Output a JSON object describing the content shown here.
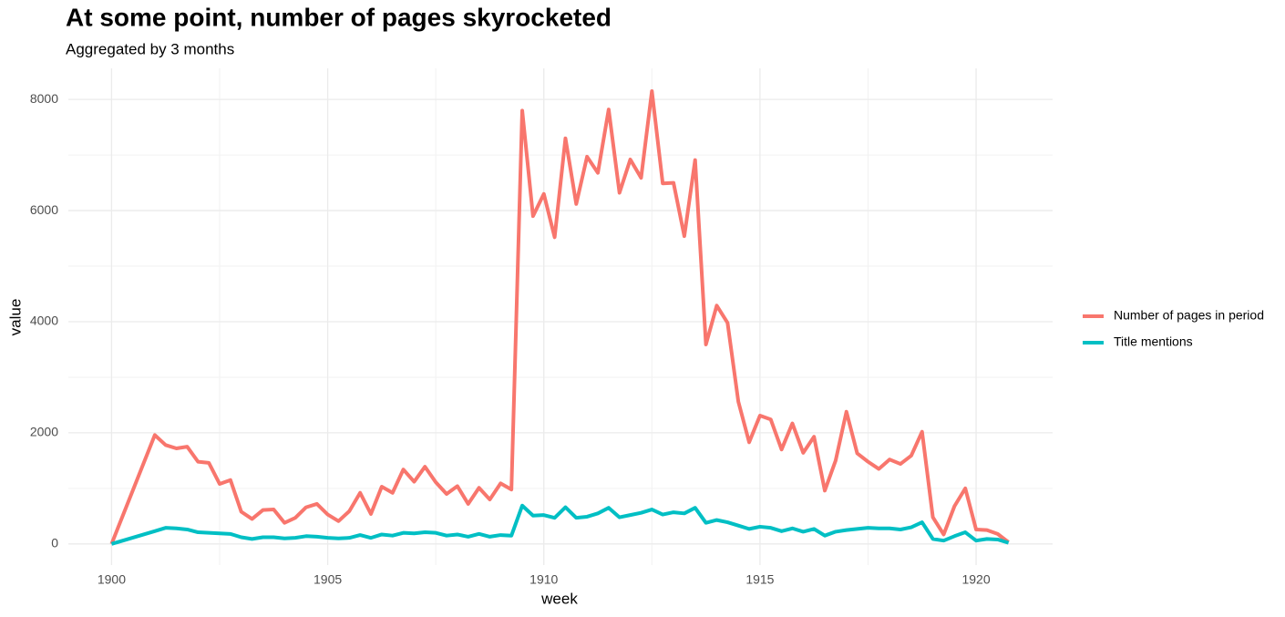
{
  "chart_data": {
    "type": "line",
    "title": "At some point, number of pages skyrocketed",
    "subtitle": "Aggregated by 3 months",
    "x_label": "week",
    "y_label": "value",
    "x": [
      1900,
      1901,
      1901.25,
      1901.5,
      1901.75,
      1902,
      1902.25,
      1902.5,
      1902.75,
      1903,
      1903.25,
      1903.5,
      1903.75,
      1904,
      1904.25,
      1904.5,
      1904.75,
      1905,
      1905.25,
      1905.5,
      1905.75,
      1906,
      1906.25,
      1906.5,
      1906.75,
      1907,
      1907.25,
      1907.5,
      1907.75,
      1908,
      1908.25,
      1908.5,
      1908.75,
      1909,
      1909.25,
      1909.5,
      1909.75,
      1910,
      1910.25,
      1910.5,
      1910.75,
      1911,
      1911.25,
      1911.5,
      1911.75,
      1912,
      1912.25,
      1912.5,
      1912.75,
      1913,
      1913.25,
      1913.5,
      1913.75,
      1914,
      1914.25,
      1914.5,
      1914.75,
      1915,
      1915.25,
      1915.5,
      1915.75,
      1916,
      1916.25,
      1916.5,
      1916.75,
      1917,
      1917.25,
      1917.5,
      1917.75,
      1918,
      1918.25,
      1918.5,
      1918.75,
      1919,
      1919.25,
      1919.5,
      1919.75,
      1920,
      1920.25,
      1920.5,
      1920.75
    ],
    "series": [
      {
        "name": "Number of pages in period",
        "color": "#f8766d",
        "values": [
          0,
          1960,
          1780,
          1720,
          1750,
          1480,
          1460,
          1080,
          1150,
          580,
          450,
          610,
          620,
          380,
          470,
          660,
          720,
          530,
          410,
          590,
          920,
          540,
          1030,
          920,
          1340,
          1120,
          1390,
          1110,
          900,
          1040,
          720,
          1010,
          800,
          1090,
          980,
          7800,
          5900,
          6300,
          5520,
          7300,
          6120,
          6970,
          6680,
          7820,
          6320,
          6920,
          6590,
          8150,
          6490,
          6500,
          5540,
          6910,
          3590,
          4290,
          3980,
          2560,
          1830,
          2310,
          2240,
          1700,
          2170,
          1640,
          1930,
          960,
          1500,
          2380,
          1630,
          1480,
          1350,
          1520,
          1440,
          1590,
          2020,
          480,
          170,
          680,
          1000,
          260,
          250,
          180,
          30
        ]
      },
      {
        "name": "Title mentions",
        "color": "#00bfc4",
        "values": [
          0,
          230,
          290,
          280,
          260,
          210,
          200,
          190,
          180,
          120,
          90,
          120,
          120,
          100,
          110,
          140,
          130,
          110,
          100,
          110,
          160,
          110,
          170,
          150,
          200,
          190,
          210,
          200,
          150,
          170,
          130,
          180,
          130,
          160,
          150,
          690,
          510,
          520,
          470,
          660,
          470,
          490,
          550,
          650,
          480,
          520,
          560,
          620,
          530,
          570,
          550,
          650,
          380,
          430,
          390,
          330,
          270,
          310,
          290,
          230,
          280,
          220,
          270,
          150,
          220,
          250,
          270,
          290,
          280,
          280,
          260,
          300,
          390,
          90,
          60,
          140,
          210,
          60,
          90,
          80,
          20
        ]
      }
    ],
    "xlim": [
      1899,
      1921.77
    ],
    "ylim": [
      -380,
      8560
    ],
    "xticks": [
      1900,
      1905,
      1910,
      1915,
      1920
    ],
    "yticks": [
      0,
      2000,
      4000,
      6000,
      8000
    ],
    "grid": true,
    "minor_grid": true,
    "legend": "right"
  }
}
